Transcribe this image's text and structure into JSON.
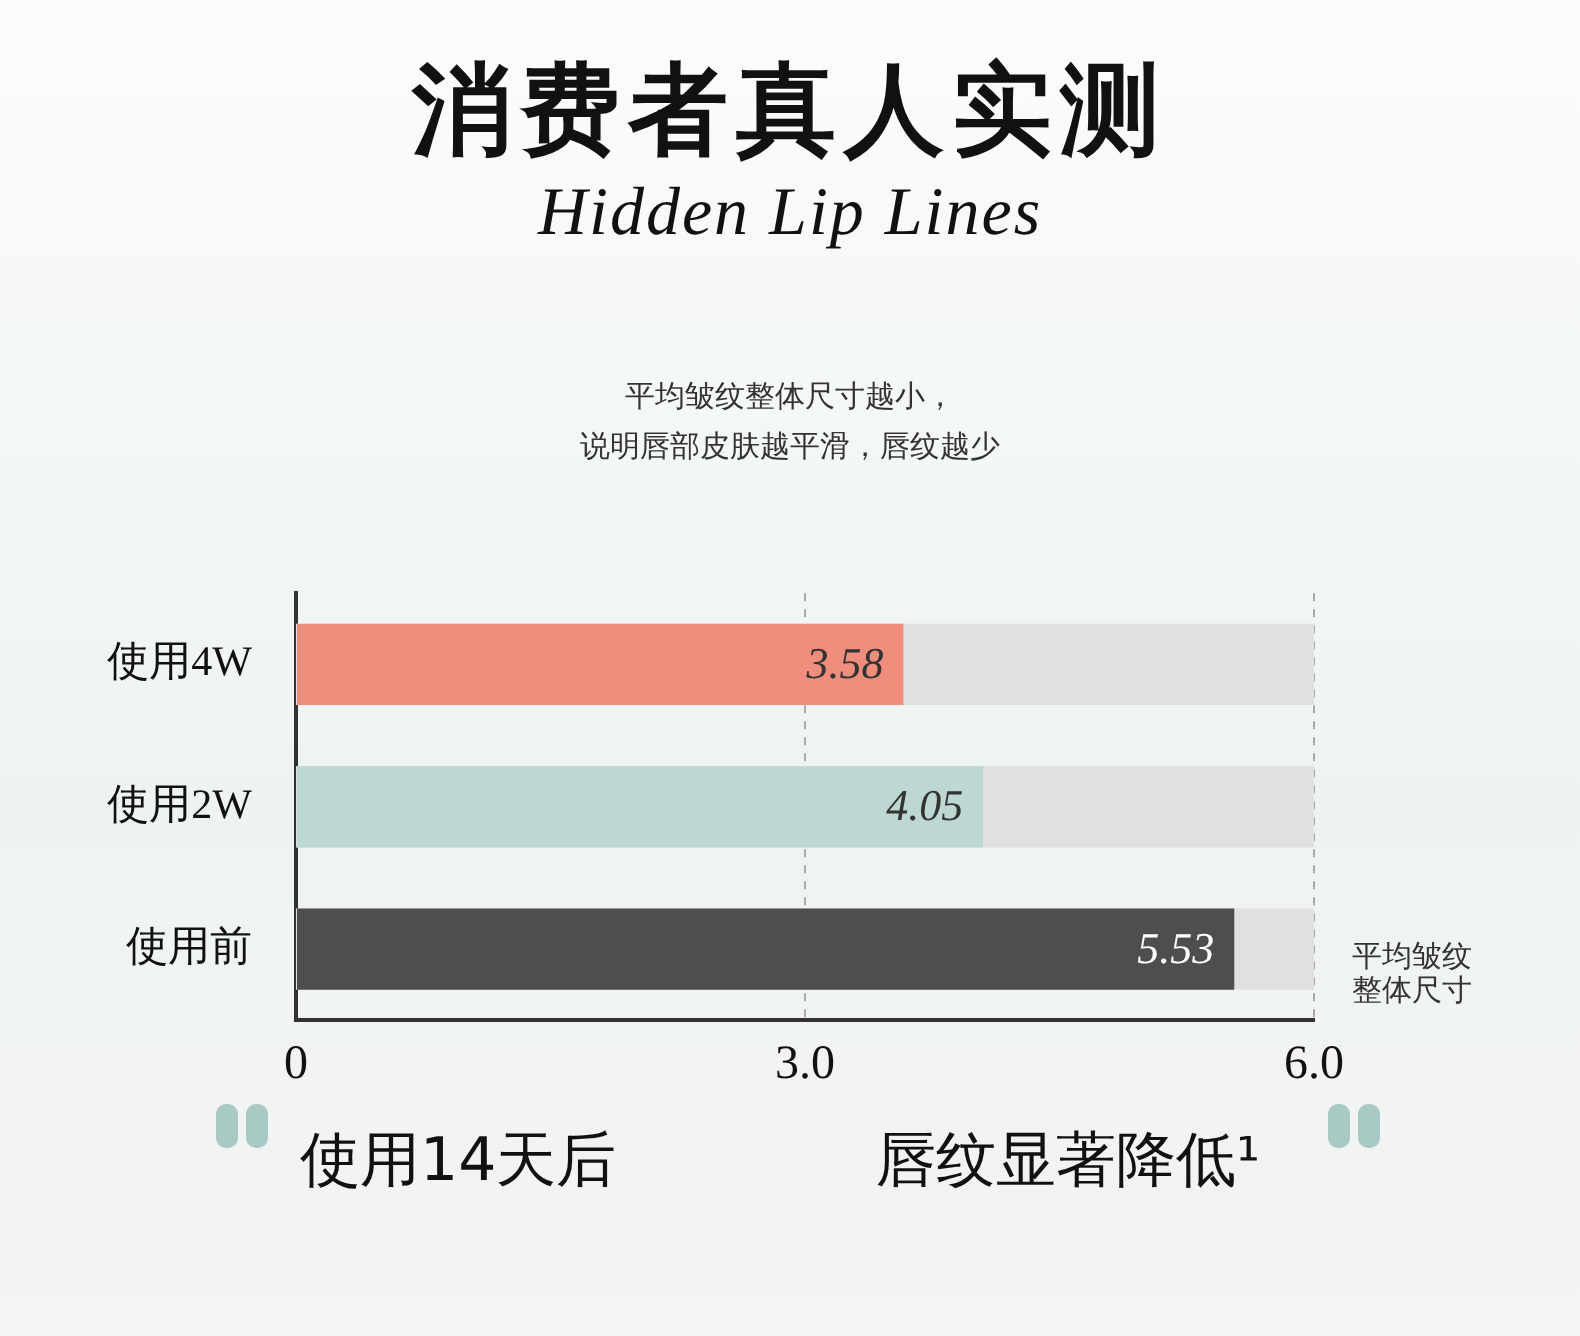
{
  "chart_data": {
    "type": "bar",
    "orientation": "horizontal",
    "title": "消费者真人实测",
    "subtitle": "Hidden Lip Lines",
    "annotations": [
      "平均皱纹整体尺寸越小，",
      "说明唇部皮肤越平滑，唇纹越少",
      "使用14天后",
      "唇纹显著降低¹"
    ],
    "xlabel": "平均皱纹整体尺寸",
    "categories": [
      "使用4W",
      "使用2W",
      "使用前"
    ],
    "values": [
      3.58,
      4.05,
      5.53
    ],
    "colors": [
      "#ef8e7c",
      "#bdd7d2",
      "#4e4e4e"
    ],
    "data_labels": true,
    "xlim": [
      0,
      6
    ],
    "xticks": [
      0,
      {
        "value": 3,
        "label": "3.0"
      },
      {
        "value": 6,
        "label": "6.0"
      }
    ],
    "grid": "x",
    "legend": false
  }
}
